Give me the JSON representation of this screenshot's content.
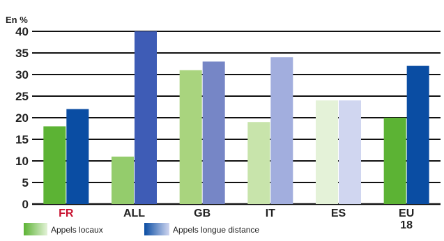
{
  "top_text": "",
  "chart_data": {
    "type": "bar",
    "title": "",
    "ylabel": "En %",
    "xlabel": "",
    "ylim": [
      0,
      40
    ],
    "yticks": [
      "0",
      "5",
      "10",
      "15",
      "20",
      "25",
      "30",
      "35",
      "40"
    ],
    "grid": "horizontal",
    "legend_position": "bottom-left",
    "categories": [
      "FR",
      "ALL",
      "GB",
      "IT",
      "ES",
      "EU 18"
    ],
    "category_colors": [
      "#c8102e",
      "#222222",
      "#222222",
      "#222222",
      "#222222",
      "#222222"
    ],
    "series": [
      {
        "name": "Appels locaux",
        "values": [
          18,
          11,
          31,
          19,
          24,
          20
        ],
        "colors": [
          "#5cb334",
          "#94cc6c",
          "#a9d47e",
          "#c8e4ab",
          "#e4f2d8",
          "#5cb334"
        ]
      },
      {
        "name": "Appels longue distance",
        "values": [
          22,
          40,
          33,
          34,
          24,
          32
        ],
        "colors": [
          "#0a4da3",
          "#3e5cb6",
          "#7686c6",
          "#a2aede",
          "#d0d6f0",
          "#0a4da3"
        ]
      }
    ]
  }
}
